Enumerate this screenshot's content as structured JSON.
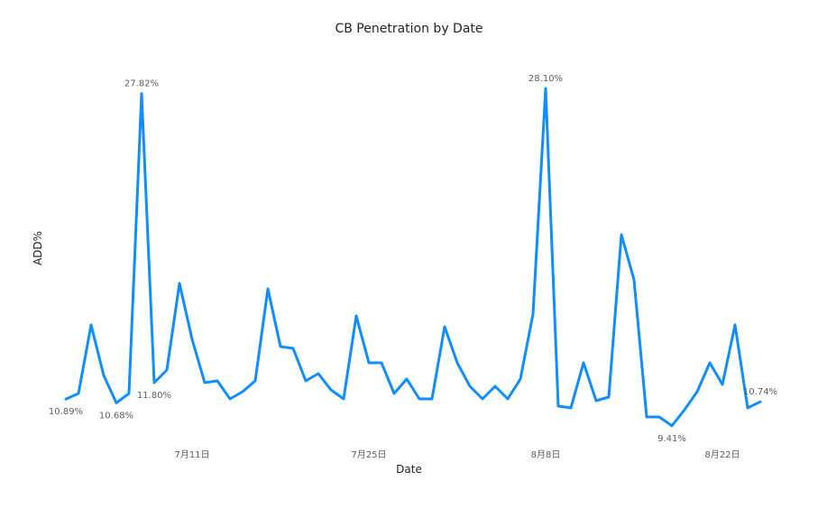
{
  "chart_data": {
    "type": "line",
    "title": "CB Penetration by Date",
    "xlabel": "Date",
    "ylabel": "ADD%",
    "color": "#118DFF",
    "x_ticks": [
      {
        "label": "7月11日",
        "index": 10
      },
      {
        "label": "7月25日",
        "index": 24
      },
      {
        "label": "8月8日",
        "index": 38
      },
      {
        "label": "8月22日",
        "index": 52
      }
    ],
    "ylim": [
      8.5,
      29.5
    ],
    "series": [
      {
        "values": [
          10.89,
          11.2,
          15.0,
          12.2,
          10.68,
          11.2,
          27.82,
          11.8,
          12.5,
          17.3,
          14.2,
          11.8,
          11.9,
          10.9,
          11.3,
          11.9,
          17.0,
          13.8,
          13.7,
          11.9,
          12.3,
          11.4,
          10.9,
          15.5,
          12.9,
          12.9,
          11.2,
          12.0,
          10.9,
          10.9,
          14.9,
          12.9,
          11.6,
          10.9,
          11.6,
          10.9,
          12.0,
          15.6,
          28.1,
          10.5,
          10.4,
          12.9,
          10.8,
          11.0,
          20.0,
          17.5,
          9.9,
          9.9,
          9.41,
          10.3,
          11.3,
          12.9,
          11.7,
          15.0,
          10.4,
          10.74
        ],
        "labels": [
          {
            "index": 0,
            "text": "10.89%",
            "pos": "below"
          },
          {
            "index": 4,
            "text": "10.68%",
            "pos": "below"
          },
          {
            "index": 6,
            "text": "27.82%",
            "pos": "above"
          },
          {
            "index": 7,
            "text": "11.80%",
            "pos": "below"
          },
          {
            "index": 38,
            "text": "28.10%",
            "pos": "above"
          },
          {
            "index": 48,
            "text": "9.41%",
            "pos": "below"
          },
          {
            "index": 55,
            "text": "10.74%",
            "pos": "above"
          }
        ]
      }
    ]
  }
}
